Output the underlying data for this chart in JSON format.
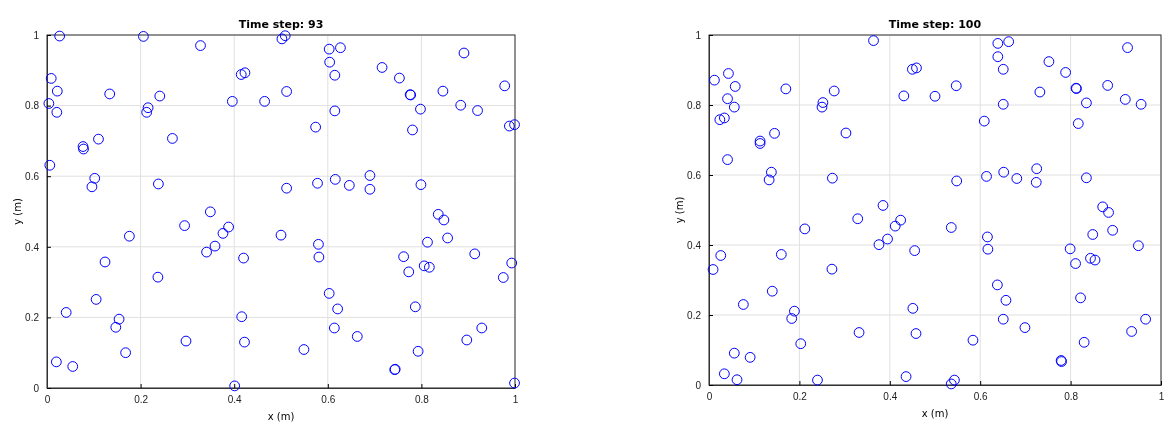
{
  "chart_data": [
    {
      "type": "scatter",
      "title": "Time step: 93",
      "xlabel": "x (m)",
      "ylabel": "y (m)",
      "xlim": [
        0,
        1
      ],
      "ylim": [
        0,
        1
      ],
      "xticks": [
        0,
        0.2,
        0.4,
        0.6,
        0.8,
        1
      ],
      "yticks": [
        0,
        0.2,
        0.4,
        0.6,
        0.8,
        1
      ],
      "grid": true,
      "marker": "circle",
      "series": [
        {
          "color": "#0000ff",
          "x": [
            0.027,
            0.206,
            0.328,
            0.009,
            0.022,
            0.134,
            0.004,
            0.021,
            0.216,
            0.213,
            0.241,
            0.396,
            0.465,
            0.415,
            0.423,
            0.11,
            0.077,
            0.078,
            0.268,
            0.006,
            0.102,
            0.096,
            0.238,
            0.349,
            0.294,
            0.388,
            0.376,
            0.359,
            0.341,
            0.176,
            0.42,
            0.124,
            0.237,
            0.105,
            0.041,
            0.154,
            0.147,
            0.416,
            0.422,
            0.297,
            0.168,
            0.02,
            0.055,
            0.401,
            0.509,
            0.502,
            0.603,
            0.627,
            0.604,
            0.615,
            0.716,
            0.753,
            0.776,
            0.777,
            0.891,
            0.978,
            0.846,
            0.884,
            0.92,
            0.798,
            0.512,
            0.615,
            0.574,
            0.781,
            0.988,
            0.999,
            0.69,
            0.616,
            0.578,
            0.646,
            0.69,
            0.512,
            0.799,
            0.5,
            0.836,
            0.848,
            0.856,
            0.813,
            0.58,
            0.581,
            0.762,
            0.773,
            0.806,
            0.817,
            0.914,
            0.993,
            0.975,
            0.603,
            0.621,
            0.787,
            0.614,
            0.663,
            0.929,
            0.897,
            0.549,
            0.793,
            0.743,
            0.744,
            0.999
          ],
          "values": [
            0.997,
            0.996,
            0.97,
            0.877,
            0.841,
            0.833,
            0.806,
            0.781,
            0.794,
            0.781,
            0.827,
            0.812,
            0.812,
            0.888,
            0.893,
            0.705,
            0.684,
            0.677,
            0.707,
            0.631,
            0.594,
            0.57,
            0.578,
            0.499,
            0.46,
            0.456,
            0.438,
            0.402,
            0.385,
            0.43,
            0.368,
            0.357,
            0.314,
            0.251,
            0.214,
            0.195,
            0.172,
            0.202,
            0.13,
            0.133,
            0.1,
            0.074,
            0.061,
            0.006,
            0.998,
            0.989,
            0.96,
            0.964,
            0.923,
            0.886,
            0.908,
            0.878,
            0.831,
            0.83,
            0.949,
            0.856,
            0.841,
            0.801,
            0.786,
            0.79,
            0.84,
            0.785,
            0.739,
            0.731,
            0.742,
            0.746,
            0.602,
            0.591,
            0.58,
            0.574,
            0.563,
            0.566,
            0.576,
            0.433,
            0.492,
            0.476,
            0.425,
            0.413,
            0.407,
            0.371,
            0.372,
            0.329,
            0.346,
            0.342,
            0.38,
            0.354,
            0.313,
            0.268,
            0.224,
            0.23,
            0.17,
            0.146,
            0.17,
            0.136,
            0.109,
            0.104,
            0.052,
            0.053,
            0.014
          ]
        }
      ]
    },
    {
      "type": "scatter",
      "title": "Time step: 100",
      "xlabel": "x (m)",
      "ylabel": "y (m)",
      "xlim": [
        0,
        1
      ],
      "ylim": [
        0,
        1
      ],
      "xticks": [
        0,
        0.2,
        0.4,
        0.6,
        0.8,
        1
      ],
      "yticks": [
        0,
        0.2,
        0.4,
        0.6,
        0.8,
        1
      ],
      "grid": true,
      "marker": "circle",
      "series": [
        {
          "color": "#0000ff",
          "x": [
            0.012,
            0.043,
            0.058,
            0.041,
            0.056,
            0.024,
            0.034,
            0.17,
            0.252,
            0.25,
            0.277,
            0.364,
            0.113,
            0.113,
            0.145,
            0.303,
            0.041,
            0.138,
            0.133,
            0.273,
            0.385,
            0.329,
            0.424,
            0.412,
            0.395,
            0.376,
            0.455,
            0.212,
            0.026,
            0.009,
            0.16,
            0.272,
            0.14,
            0.076,
            0.189,
            0.183,
            0.451,
            0.458,
            0.332,
            0.203,
            0.056,
            0.091,
            0.034,
            0.062,
            0.24,
            0.436,
            0.45,
            0.459,
            0.431,
            0.639,
            0.663,
            0.639,
            0.651,
            0.752,
            0.789,
            0.926,
            0.547,
            0.5,
            0.732,
            0.812,
            0.813,
            0.882,
            0.835,
            0.921,
            0.956,
            0.651,
            0.609,
            0.817,
            0.652,
            0.614,
            0.681,
            0.725,
            0.724,
            0.835,
            0.548,
            0.871,
            0.884,
            0.893,
            0.849,
            0.95,
            0.799,
            0.844,
            0.854,
            0.811,
            0.616,
            0.617,
            0.536,
            0.638,
            0.657,
            0.822,
            0.651,
            0.699,
            0.966,
            0.935,
            0.83,
            0.584,
            0.779,
            0.78,
            0.543,
            0.536
          ],
          "values": [
            0.871,
            0.89,
            0.853,
            0.818,
            0.794,
            0.758,
            0.763,
            0.846,
            0.807,
            0.794,
            0.84,
            0.984,
            0.697,
            0.69,
            0.719,
            0.72,
            0.644,
            0.608,
            0.586,
            0.591,
            0.513,
            0.475,
            0.471,
            0.454,
            0.417,
            0.401,
            0.384,
            0.446,
            0.37,
            0.33,
            0.373,
            0.331,
            0.268,
            0.23,
            0.211,
            0.19,
            0.219,
            0.147,
            0.15,
            0.118,
            0.091,
            0.079,
            0.032,
            0.015,
            0.014,
            0.024,
            0.902,
            0.906,
            0.826,
            0.976,
            0.981,
            0.938,
            0.902,
            0.924,
            0.893,
            0.964,
            0.855,
            0.825,
            0.837,
            0.848,
            0.847,
            0.856,
            0.806,
            0.816,
            0.802,
            0.802,
            0.754,
            0.747,
            0.608,
            0.596,
            0.59,
            0.618,
            0.579,
            0.592,
            0.583,
            0.509,
            0.493,
            0.442,
            0.43,
            0.398,
            0.389,
            0.362,
            0.357,
            0.347,
            0.423,
            0.388,
            0.45,
            0.286,
            0.242,
            0.249,
            0.188,
            0.164,
            0.188,
            0.153,
            0.122,
            0.128,
            0.07,
            0.067,
            0.014,
            0.003
          ]
        }
      ]
    }
  ]
}
